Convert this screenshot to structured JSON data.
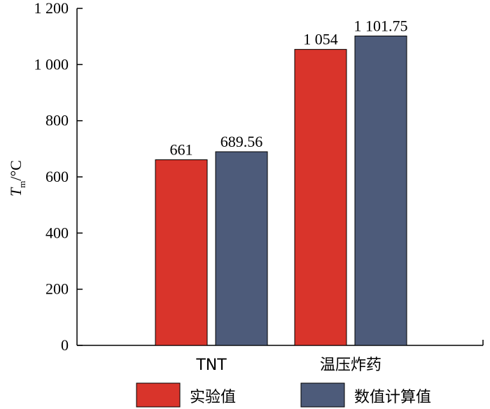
{
  "chart_data": {
    "type": "bar",
    "categories": [
      "TNT",
      "温压炸药"
    ],
    "series": [
      {
        "name": "实验值",
        "values": [
          661,
          1054
        ],
        "labels": [
          "661",
          "1 054"
        ],
        "color": "#d9342b"
      },
      {
        "name": "数值计算值",
        "values": [
          689.56,
          1101.75
        ],
        "labels": [
          "689.56",
          "1 101.75"
        ],
        "color": "#4d5b7a"
      }
    ],
    "ylabel": {
      "symbol": "T",
      "subscript": "m",
      "unit": "/°C"
    },
    "ylim": [
      0,
      1200
    ],
    "yticks": [
      0,
      200,
      400,
      600,
      800,
      1000,
      1200
    ],
    "ytick_labels": [
      "0",
      "200",
      "400",
      "600",
      "800",
      "1 000",
      "1 200"
    ],
    "grid": false,
    "legend_position": "bottom"
  }
}
